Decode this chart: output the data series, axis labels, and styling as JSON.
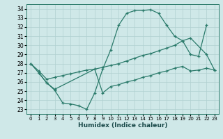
{
  "xlabel": "Humidex (Indice chaleur)",
  "bg_color": "#cfe8e8",
  "grid_color": "#b0d0d0",
  "line_color": "#2a7a6a",
  "xlim": [
    -0.5,
    23.5
  ],
  "ylim": [
    22.5,
    34.5
  ],
  "xticks": [
    0,
    1,
    2,
    3,
    4,
    5,
    6,
    7,
    8,
    9,
    10,
    11,
    12,
    13,
    14,
    15,
    16,
    17,
    18,
    19,
    20,
    21,
    22,
    23
  ],
  "yticks": [
    23,
    24,
    25,
    26,
    27,
    28,
    29,
    30,
    31,
    32,
    33,
    34
  ],
  "line1_x": [
    0,
    1,
    2,
    3,
    4,
    5,
    6,
    7,
    8,
    9,
    10,
    11,
    12,
    13,
    14,
    15,
    16,
    17,
    18,
    19,
    20,
    21,
    22
  ],
  "line1_y": [
    28.0,
    27.0,
    25.9,
    25.1,
    23.7,
    23.6,
    23.4,
    23.0,
    24.8,
    27.4,
    29.5,
    32.2,
    33.5,
    33.8,
    33.8,
    33.9,
    33.5,
    32.2,
    31.0,
    30.5,
    29.0,
    28.8,
    32.2
  ],
  "line2_x": [
    0,
    1,
    2,
    3,
    4,
    5,
    6,
    7,
    8,
    9,
    10,
    11,
    12,
    13,
    14,
    15,
    16,
    17,
    18,
    19,
    20,
    22,
    23
  ],
  "line2_y": [
    28.0,
    27.2,
    26.3,
    26.5,
    26.7,
    26.9,
    27.1,
    27.3,
    27.4,
    27.6,
    27.8,
    28.0,
    28.3,
    28.6,
    28.9,
    29.1,
    29.4,
    29.7,
    30.0,
    30.5,
    30.8,
    29.0,
    27.3
  ],
  "line3_x": [
    1,
    2,
    3,
    8,
    9,
    10,
    11,
    12,
    13,
    14,
    15,
    16,
    17,
    18,
    19,
    20,
    21,
    22,
    23
  ],
  "line3_y": [
    27.0,
    25.9,
    25.2,
    27.4,
    24.8,
    25.5,
    25.7,
    26.0,
    26.2,
    26.5,
    26.7,
    27.0,
    27.2,
    27.5,
    27.7,
    27.2,
    27.3,
    27.5,
    27.3
  ]
}
